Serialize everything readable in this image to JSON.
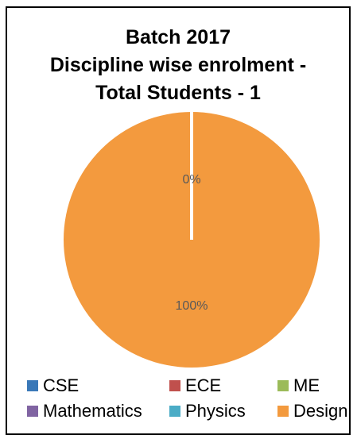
{
  "chart_data": {
    "type": "pie",
    "title_lines": [
      "Batch 2017",
      "Discipline wise enrolment -",
      "Total Students - 1"
    ],
    "slices": [
      {
        "name": "CSE",
        "value": 0,
        "color": "#3a78b8"
      },
      {
        "name": "ECE",
        "value": 0,
        "color": "#c0504d"
      },
      {
        "name": "ME",
        "value": 0,
        "color": "#9bbb59"
      },
      {
        "name": "Mathematics",
        "value": 0,
        "color": "#8064a2"
      },
      {
        "name": "Physics",
        "value": 0,
        "color": "#4bacc6"
      },
      {
        "name": "Design",
        "value": 1,
        "color": "#f39a3e"
      }
    ],
    "data_labels": [
      "0%",
      "100%"
    ],
    "legend_position": "bottom"
  }
}
